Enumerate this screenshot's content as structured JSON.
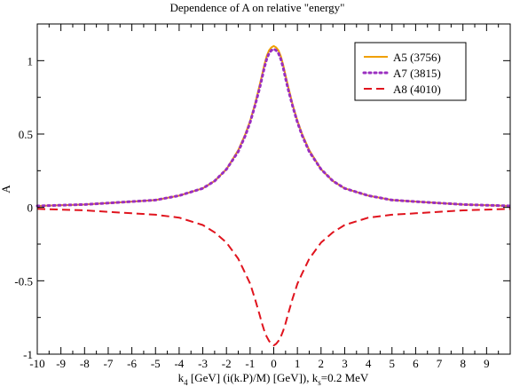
{
  "chart_data": {
    "type": "line",
    "title": "Dependence of A on relative \"energy\"",
    "ylabel": "A",
    "xlabel_parts": {
      "pre": "k",
      "sub1": "4",
      "mid": " [GeV] (i(k.P)/M) [GeV]), k",
      "sub2": "s",
      "post": "=0.2 MeV"
    },
    "xlim": [
      -10,
      10
    ],
    "ylim": [
      -1,
      1.25
    ],
    "xticks": [
      -10,
      -9,
      -8,
      -7,
      -6,
      -5,
      -4,
      -3,
      -2,
      -1,
      0,
      1,
      2,
      3,
      4,
      5,
      6,
      7,
      8,
      9
    ],
    "yticks": [
      -1,
      -0.5,
      0,
      0.5,
      1
    ],
    "yticklabels": [
      "-1",
      "-0.5",
      "0",
      "0.5",
      "1"
    ],
    "grid": false,
    "legend_position": "top-right",
    "series": [
      {
        "name": "A5 (3756)",
        "color": "#f0a000",
        "style": "solid",
        "x": [
          -10,
          -8,
          -6,
          -5,
          -4,
          -3,
          -2.5,
          -2,
          -1.5,
          -1.2,
          -1,
          -0.8,
          -0.6,
          -0.5,
          -0.4,
          -0.3,
          -0.2,
          -0.1,
          0,
          0.1,
          0.2,
          0.3,
          0.4,
          0.5,
          0.6,
          0.8,
          1,
          1.2,
          1.5,
          2,
          2.5,
          3,
          4,
          5,
          6,
          8,
          10
        ],
        "y": [
          0.01,
          0.02,
          0.04,
          0.05,
          0.08,
          0.13,
          0.18,
          0.26,
          0.39,
          0.5,
          0.59,
          0.7,
          0.83,
          0.9,
          0.97,
          1.03,
          1.07,
          1.09,
          1.1,
          1.09,
          1.07,
          1.03,
          0.97,
          0.9,
          0.83,
          0.7,
          0.59,
          0.5,
          0.39,
          0.26,
          0.18,
          0.13,
          0.08,
          0.05,
          0.04,
          0.02,
          0.01
        ]
      },
      {
        "name": "A7 (3815)",
        "color": "#9a2fc0",
        "style": "dotted",
        "x": [
          -10,
          -8,
          -6,
          -5,
          -4,
          -3,
          -2.5,
          -2,
          -1.5,
          -1.2,
          -1,
          -0.8,
          -0.6,
          -0.5,
          -0.4,
          -0.3,
          -0.2,
          -0.1,
          0,
          0.1,
          0.2,
          0.3,
          0.4,
          0.5,
          0.6,
          0.8,
          1,
          1.2,
          1.5,
          2,
          2.5,
          3,
          4,
          5,
          6,
          8,
          10
        ],
        "y": [
          0.01,
          0.02,
          0.04,
          0.05,
          0.08,
          0.13,
          0.18,
          0.26,
          0.38,
          0.49,
          0.58,
          0.69,
          0.81,
          0.88,
          0.95,
          1.01,
          1.05,
          1.07,
          1.08,
          1.07,
          1.05,
          1.01,
          0.95,
          0.88,
          0.81,
          0.69,
          0.58,
          0.49,
          0.38,
          0.26,
          0.18,
          0.13,
          0.08,
          0.05,
          0.04,
          0.02,
          0.01
        ]
      },
      {
        "name": "A8 (4010)",
        "color": "#e0141e",
        "style": "dashed",
        "x": [
          -10,
          -8,
          -6,
          -5,
          -4,
          -3,
          -2.5,
          -2,
          -1.5,
          -1.2,
          -1,
          -0.8,
          -0.6,
          -0.5,
          -0.4,
          -0.3,
          -0.2,
          -0.1,
          0,
          0.1,
          0.2,
          0.3,
          0.4,
          0.5,
          0.6,
          0.8,
          1,
          1.2,
          1.5,
          2,
          2.5,
          3,
          4,
          5,
          6,
          8,
          10
        ],
        "y": [
          -0.01,
          -0.02,
          -0.04,
          -0.05,
          -0.07,
          -0.12,
          -0.17,
          -0.24,
          -0.35,
          -0.45,
          -0.52,
          -0.62,
          -0.73,
          -0.79,
          -0.84,
          -0.88,
          -0.91,
          -0.93,
          -0.94,
          -0.93,
          -0.91,
          -0.88,
          -0.84,
          -0.79,
          -0.73,
          -0.62,
          -0.52,
          -0.45,
          -0.35,
          -0.24,
          -0.17,
          -0.12,
          -0.07,
          -0.05,
          -0.04,
          -0.02,
          -0.01
        ]
      }
    ]
  }
}
